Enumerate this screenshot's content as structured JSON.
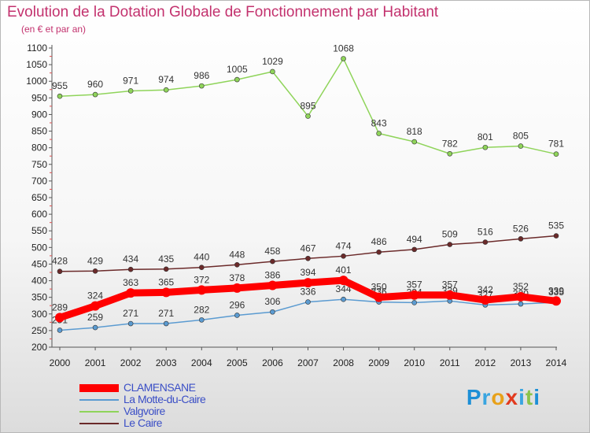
{
  "chart_data": {
    "type": "line",
    "title": "Evolution de la Dotation Globale de Fonctionnement par Habitant",
    "subtitle": "(en € et par an)",
    "x": [
      2000,
      2001,
      2002,
      2003,
      2004,
      2005,
      2006,
      2007,
      2008,
      2009,
      2010,
      2011,
      2012,
      2013,
      2014
    ],
    "xticks": [
      "2000",
      "2001",
      "2002",
      "2003",
      "2004",
      "2005",
      "2006",
      "2007",
      "2008",
      "2009",
      "2010",
      "2011",
      "2012",
      "2013",
      "2014"
    ],
    "ylim": [
      200,
      1100
    ],
    "yticks": [
      "200",
      "250",
      "300",
      "350",
      "400",
      "450",
      "500",
      "550",
      "600",
      "650",
      "700",
      "750",
      "800",
      "850",
      "900",
      "950",
      "1000",
      "1050",
      "1100"
    ],
    "grid": false,
    "legend_position": "bottom-left",
    "series": [
      {
        "name": "Valgvoire",
        "color": "#8fd45a",
        "values": [
          955,
          960,
          971,
          974,
          986,
          1005,
          1029,
          895,
          1068,
          843,
          818,
          782,
          801,
          805,
          781
        ],
        "labels": [
          "955",
          "960",
          "971",
          "974",
          "986",
          "1005",
          "1029",
          "895",
          "1068",
          "843",
          "818",
          "782",
          "801",
          "805",
          "781"
        ]
      },
      {
        "name": "Le Caire",
        "color": "#6b2a2a",
        "values": [
          428,
          429,
          434,
          435,
          440,
          448,
          458,
          467,
          474,
          486,
          494,
          509,
          516,
          526,
          535
        ],
        "labels": [
          "428",
          "429",
          "434",
          "435",
          "440",
          "448",
          "458",
          "467",
          "474",
          "486",
          "494",
          "509",
          "516",
          "526",
          "535"
        ]
      },
      {
        "name": "La Motte-du-Caire",
        "color": "#5b9bd1",
        "values": [
          251,
          259,
          271,
          271,
          282,
          296,
          306,
          336,
          344,
          336,
          334,
          339,
          327,
          330,
          335
        ],
        "labels": [
          "251",
          "259",
          "271",
          "271",
          "282",
          "296",
          "306",
          "336",
          "344",
          "336",
          "334",
          "339",
          "327",
          "330",
          "335"
        ]
      },
      {
        "name": "CLAMENSANE",
        "color": "#ff0000",
        "values": [
          289,
          324,
          363,
          365,
          372,
          378,
          386,
          394,
          401,
          350,
          357,
          357,
          342,
          352,
          339
        ],
        "labels": [
          "289",
          "324",
          "363",
          "365",
          "372",
          "378",
          "386",
          "394",
          "401",
          "350",
          "357",
          "357",
          "342",
          "352",
          "339"
        ]
      }
    ]
  },
  "legend": [
    {
      "label": "CLAMENSANE",
      "color": "#ff0000",
      "thickness": 10
    },
    {
      "label": "La Motte-du-Caire",
      "color": "#5b9bd1",
      "thickness": 2
    },
    {
      "label": "Valgvoire",
      "color": "#8fd45a",
      "thickness": 2
    },
    {
      "label": "Le Caire",
      "color": "#6b2a2a",
      "thickness": 2
    }
  ],
  "brand": {
    "letters": [
      "P",
      "r",
      "o",
      "x",
      "i",
      "t",
      "i"
    ],
    "colors": [
      "#1d8fd6",
      "#3aa5e0",
      "#e8a11a",
      "#e23a1e",
      "#3aa5e0",
      "#8bc34a",
      "#1d8fd6"
    ]
  }
}
